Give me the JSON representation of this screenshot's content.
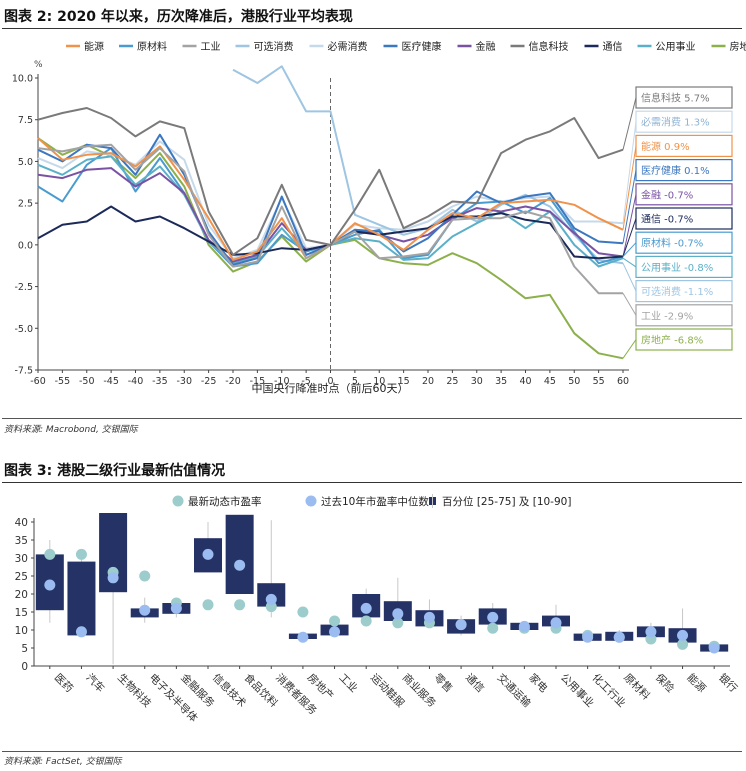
{
  "chart1": {
    "title": "图表 2: 2020 年以来，历次降准后，港股行业平均表现",
    "source": "资料来源: Macrobond, 交银国际",
    "chart_data": {
      "type": "line",
      "xlabel": "中国央行降准时点（前后60天）",
      "ylabel": "%",
      "xlim": [
        -60,
        60
      ],
      "ylim": [
        -7.5,
        10
      ],
      "xticks": [
        -60,
        -55,
        -50,
        -45,
        -40,
        -35,
        -30,
        -25,
        -20,
        -15,
        -10,
        -5,
        0,
        5,
        10,
        15,
        20,
        25,
        30,
        35,
        40,
        45,
        50,
        55,
        60
      ],
      "yticks": [
        -7.5,
        -5.0,
        -2.5,
        0.0,
        2.5,
        5.0,
        7.5,
        10.0
      ],
      "x": [
        -60,
        -55,
        -50,
        -45,
        -40,
        -35,
        -30,
        -25,
        -20,
        -15,
        -10,
        -5,
        0,
        5,
        10,
        15,
        20,
        25,
        30,
        35,
        40,
        45,
        50,
        55,
        60
      ],
      "series": [
        {
          "name": "能源",
          "color": "#f0924a",
          "values": [
            6.4,
            5.1,
            5.4,
            5.5,
            4.7,
            5.9,
            3.9,
            1.6,
            -0.9,
            -0.4,
            1.6,
            -0.8,
            0,
            1.3,
            0.6,
            -0.3,
            0.9,
            1.9,
            1.6,
            2.5,
            2.6,
            2.7,
            2.4,
            1.6,
            0.9
          ]
        },
        {
          "name": "原材料",
          "color": "#4a9bd0",
          "values": [
            3.5,
            2.6,
            4.8,
            5.8,
            3.2,
            5.2,
            3.1,
            0.2,
            -1.3,
            -1.1,
            0.6,
            -0.4,
            0,
            0.6,
            0.9,
            -0.8,
            -0.6,
            1.5,
            2.5,
            2.6,
            1.9,
            2.8,
            0.8,
            -1.1,
            -0.7
          ]
        },
        {
          "name": "工业",
          "color": "#a3a3a3",
          "values": [
            5.8,
            5.6,
            5.9,
            6.0,
            4.5,
            5.8,
            4.4,
            0.6,
            -1.3,
            -1.0,
            2.3,
            -0.8,
            0,
            0.8,
            -0.8,
            -0.7,
            -0.5,
            1.5,
            1.6,
            1.6,
            2.0,
            1.6,
            -1.3,
            -2.9,
            -2.9
          ]
        },
        {
          "name": "可选消费",
          "color": "#9ec5e2",
          "values": [
            null,
            null,
            null,
            null,
            null,
            null,
            null,
            null,
            10.5,
            9.7,
            10.7,
            8.0,
            8.0,
            1.8,
            1.2,
            0.6,
            1.0,
            2.1,
            1.4,
            2.4,
            3.0,
            2.3,
            0.6,
            -0.9,
            -1.1
          ]
        },
        {
          "name": "必需消费",
          "color": "#c5d9ea",
          "values": [
            5.2,
            4.6,
            5.6,
            5.4,
            4.8,
            6.2,
            5.1,
            1.2,
            -0.8,
            -0.3,
            2.8,
            -0.2,
            0,
            1.2,
            1.0,
            0.9,
            1.4,
            2.3,
            2.9,
            2.6,
            2.8,
            2.9,
            1.4,
            1.4,
            1.3
          ]
        },
        {
          "name": "医疗健康",
          "color": "#3c78c0",
          "values": [
            5.7,
            5.0,
            6.0,
            5.8,
            4.2,
            6.6,
            4.2,
            0.8,
            -1.2,
            -0.8,
            2.9,
            -0.6,
            0,
            0.9,
            0.8,
            -0.4,
            0.4,
            1.8,
            3.2,
            2.5,
            2.9,
            3.1,
            1.0,
            0.2,
            0.1
          ]
        },
        {
          "name": "金融",
          "color": "#7a52a3",
          "values": [
            4.2,
            4.0,
            4.5,
            4.6,
            3.5,
            4.3,
            3.1,
            0.3,
            -1.0,
            -0.6,
            1.3,
            -0.3,
            0,
            0.9,
            0.6,
            0.2,
            0.6,
            1.6,
            2.2,
            2.0,
            2.3,
            2.0,
            0.7,
            -0.5,
            -0.7
          ]
        },
        {
          "name": "信息科技",
          "color": "#7a7a7a",
          "values": [
            7.5,
            7.9,
            8.2,
            7.6,
            6.5,
            7.4,
            7.0,
            2.0,
            -0.6,
            0.4,
            3.6,
            0.3,
            0,
            2.1,
            4.5,
            1.0,
            1.7,
            2.6,
            2.5,
            5.5,
            6.3,
            6.8,
            7.6,
            5.2,
            5.7
          ]
        },
        {
          "name": "通信",
          "color": "#1c2a5a",
          "values": [
            0.4,
            1.2,
            1.4,
            2.3,
            1.4,
            1.7,
            1.0,
            0.2,
            -0.6,
            -0.5,
            -0.2,
            -0.3,
            0,
            0.8,
            0.6,
            0.8,
            1.0,
            1.7,
            1.7,
            1.9,
            1.5,
            1.3,
            -0.7,
            -0.8,
            -0.7
          ]
        },
        {
          "name": "公用事业",
          "color": "#5ab0c8",
          "values": [
            4.8,
            4.2,
            5.1,
            5.3,
            3.6,
            4.7,
            3.0,
            0.2,
            -1.1,
            -0.7,
            1.0,
            -0.6,
            0,
            0.4,
            0.2,
            -0.9,
            -0.8,
            0.5,
            1.3,
            2.0,
            1.0,
            2.0,
            0.0,
            -1.3,
            -0.8
          ]
        },
        {
          "name": "房地产",
          "color": "#8cb04c",
          "values": [
            6.4,
            5.4,
            6.0,
            5.3,
            4.0,
            5.5,
            3.5,
            0.0,
            -1.6,
            -1.0,
            0.5,
            -1.0,
            0,
            0.3,
            -0.8,
            -1.1,
            -1.2,
            -0.5,
            -1.1,
            -2.1,
            -3.2,
            -3.0,
            -5.3,
            -6.5,
            -6.8
          ]
        }
      ],
      "end_labels": [
        {
          "text": "信息科技 5.7%",
          "color": "#7a7a7a"
        },
        {
          "text": "必需消费 1.3%",
          "color": "#c5d9ea"
        },
        {
          "text": "能源 0.9%",
          "color": "#f0924a"
        },
        {
          "text": "医疗健康 0.1%",
          "color": "#3c78c0"
        },
        {
          "text": "金融 -0.7%",
          "color": "#7a52a3"
        },
        {
          "text": "通信 -0.7%",
          "color": "#1c2a5a"
        },
        {
          "text": "原材料 -0.7%",
          "color": "#4a9bd0"
        },
        {
          "text": "公用事业 -0.8%",
          "color": "#5ab0c8"
        },
        {
          "text": "可选消费 -1.1%",
          "color": "#9ec5e2"
        },
        {
          "text": "工业 -2.9%",
          "color": "#a3a3a3"
        },
        {
          "text": "房地产 -6.8%",
          "color": "#8cb04c"
        }
      ]
    }
  },
  "chart2": {
    "title": "图表 3: 港股二级行业最新估值情况",
    "source": "资料来源: FactSet, 交银国际",
    "chart_data": {
      "type": "box",
      "ylim": [
        0,
        40
      ],
      "yticks": [
        0,
        5,
        10,
        15,
        20,
        25,
        30,
        35,
        40
      ],
      "legend": [
        "最新动态市盈率",
        "过去10年市盈率中位数",
        "百分位 [25-75] 及 [10-90]"
      ],
      "colors": {
        "box": "#253266",
        "latest": "#9ccccc",
        "median": "#9bbcf0",
        "whisker": "#c8c8c8"
      },
      "categories": [
        "医药",
        "汽车",
        "生物科技",
        "电子及半导体",
        "金融服务",
        "信息技术",
        "食品饮料",
        "消费者服务",
        "房地产",
        "工业",
        "运动鞋服",
        "商业服务",
        "零售",
        "通信",
        "交通运输",
        "家电",
        "公用事业",
        "化工行业",
        "原材料",
        "保险",
        "能源",
        "银行"
      ],
      "p10": [
        12.0,
        8.0,
        0.5,
        12.0,
        13.5,
        null,
        null,
        13.5,
        7.5,
        8.0,
        12.0,
        11.5,
        11.0,
        8.5,
        10.0,
        9.5,
        9.5,
        6.5,
        6.5,
        6.5,
        5.5,
        4.0
      ],
      "p25": [
        15.5,
        8.5,
        20.5,
        13.5,
        14.5,
        26.0,
        20.0,
        16.5,
        7.5,
        8.5,
        13.5,
        12.5,
        11.0,
        9.0,
        11.5,
        10.0,
        11.0,
        7.0,
        7.0,
        8.0,
        6.5,
        4.0
      ],
      "p75": [
        31.0,
        29.0,
        42.5,
        16.0,
        17.5,
        35.5,
        42.0,
        23.0,
        9.0,
        11.5,
        20.0,
        18.0,
        15.5,
        13.0,
        16.0,
        12.0,
        14.0,
        9.0,
        9.5,
        11.0,
        10.5,
        6.0
      ],
      "p90": [
        35.0,
        32.0,
        null,
        19.0,
        18.5,
        40.0,
        null,
        40.5,
        9.5,
        13.0,
        21.5,
        24.5,
        18.5,
        14.0,
        17.5,
        12.5,
        17.0,
        9.5,
        10.0,
        12.0,
        16.0,
        6.5
      ],
      "latest": [
        31.0,
        31.0,
        26.0,
        25.0,
        17.5,
        17.0,
        17.0,
        16.5,
        15.0,
        12.5,
        12.5,
        12.0,
        12.0,
        11.5,
        10.5,
        10.5,
        10.5,
        8.5,
        8.0,
        7.5,
        6.0,
        5.5
      ],
      "median": [
        22.5,
        9.5,
        24.5,
        15.5,
        16.0,
        31.0,
        28.0,
        18.5,
        8.0,
        9.5,
        16.0,
        14.5,
        13.5,
        11.5,
        13.5,
        11.0,
        12.0,
        8.0,
        8.0,
        9.5,
        8.5,
        5.0
      ]
    }
  }
}
